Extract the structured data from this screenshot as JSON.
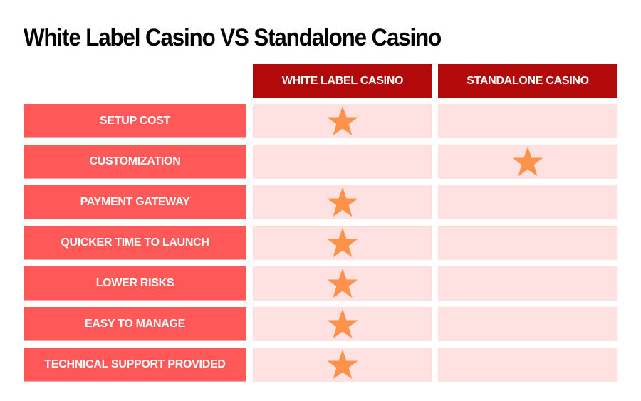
{
  "title": "White Label Casino VS Standalone Casino",
  "columns": [
    "WHITE LABEL CASINO",
    "STANDALONE CASINO"
  ],
  "rows": [
    {
      "label": "SETUP COST",
      "white_label": true,
      "standalone": false
    },
    {
      "label": "CUSTOMIZATION",
      "white_label": false,
      "standalone": true
    },
    {
      "label": "PAYMENT GATEWAY",
      "white_label": true,
      "standalone": false
    },
    {
      "label": "QUICKER TIME TO LAUNCH",
      "white_label": true,
      "standalone": false
    },
    {
      "label": "LOWER RISKS",
      "white_label": true,
      "standalone": false
    },
    {
      "label": "EASY TO MANAGE",
      "white_label": true,
      "standalone": false
    },
    {
      "label": "TECHNICAL SUPPORT PROVIDED",
      "white_label": true,
      "standalone": false
    }
  ],
  "colors": {
    "header_bg": "#b20a0a",
    "row_label_bg": "#ff5858",
    "cell_bg": "#ffe1e1",
    "star": "#ff924a"
  },
  "icons": {
    "winner_mark": "star-icon"
  }
}
